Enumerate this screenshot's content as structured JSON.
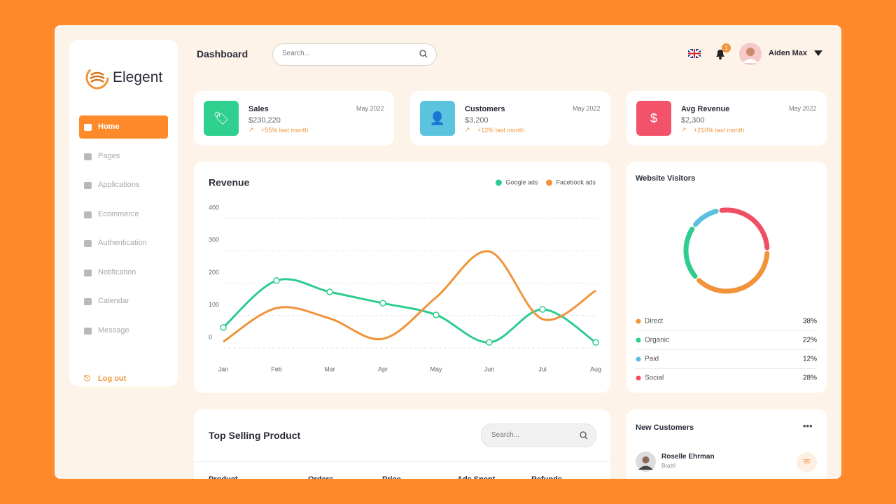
{
  "sidebar": {
    "brand": "Elegent",
    "menu": [
      "Home",
      "Pages",
      "Applications",
      "Ecommerce",
      "Authentication",
      "Notification",
      "Calendar",
      "Message"
    ],
    "logout": "Log out"
  },
  "header": {
    "title": "Dashboard",
    "search_placeholder": "Search...",
    "notifications": 1,
    "user": "Aiden Max"
  },
  "stats": [
    {
      "label": "Sales",
      "date": "May 2022",
      "value": "$230,220",
      "change": "+55% last month",
      "color": "#2ecf8f"
    },
    {
      "label": "Customers",
      "date": "May 2022",
      "value": "$3,200",
      "change": "+12% last month",
      "color": "#5bc3de"
    },
    {
      "label": "Avg Revenue",
      "date": "May 2022",
      "value": "$2,300",
      "change": "+210% last month",
      "color": "#f2526a"
    }
  ],
  "chart_data": [
    {
      "type": "line",
      "title": "Revenue",
      "categories": [
        "Jan",
        "Feb",
        "Mar",
        "Apr",
        "May",
        "Jun",
        "Jul",
        "Aug"
      ],
      "series": [
        {
          "name": "Google ads",
          "color": "#2ecc8f",
          "markers": true,
          "values": [
            63,
            208,
            173,
            138,
            102,
            17,
            119,
            17
          ]
        },
        {
          "name": "Facebook ads",
          "color": "#f0933a",
          "markers": false,
          "values": [
            19,
            123,
            91,
            28,
            156,
            298,
            89,
            177
          ]
        }
      ],
      "ylim": [
        0,
        400
      ],
      "yticks": [
        0,
        100,
        200,
        300,
        400
      ],
      "grid": true
    },
    {
      "type": "donut",
      "title": "Website Visitors",
      "categories": [
        "Direct",
        "Organic",
        "Paid",
        "Social"
      ],
      "values": [
        38,
        22,
        12,
        28
      ],
      "value_labels": [
        "38%",
        "22%",
        "12%",
        "28%"
      ],
      "colors": [
        "#f0933a",
        "#2ecc8f",
        "#5bc0de",
        "#ef4e63"
      ]
    }
  ],
  "products": {
    "title": "Top Selling Product",
    "search_placeholder": "Search...",
    "columns": [
      "Product",
      "Orders",
      "Price",
      "Ads Spent",
      "Refunds"
    ]
  },
  "customers": {
    "title": "New Customers",
    "items": [
      {
        "name": "Roselle Ehrman",
        "country": "Brazil"
      }
    ]
  }
}
